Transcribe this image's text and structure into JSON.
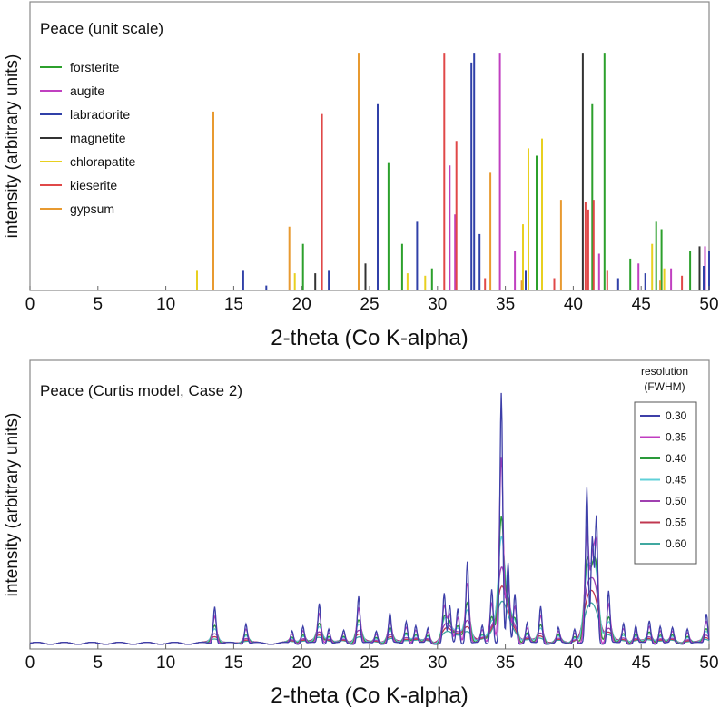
{
  "chart_data": [
    {
      "type": "bar",
      "title": "Peace (unit scale)",
      "xlabel": "2-theta (Co K-alpha)",
      "ylabel": "intensity (arbitrary units)",
      "xlim": [
        0,
        50
      ],
      "ylim": [
        0,
        1
      ],
      "xticks": [
        0,
        5,
        10,
        15,
        20,
        25,
        30,
        35,
        40,
        45,
        50
      ],
      "legend_position": "top-left",
      "series": [
        {
          "name": "forsterite",
          "color": "#2ca02c",
          "peaks": [
            [
              20.1,
              0.19
            ],
            [
              26.4,
              0.52
            ],
            [
              27.4,
              0.19
            ],
            [
              29.6,
              0.09
            ],
            [
              37.3,
              0.55
            ],
            [
              41.4,
              0.76
            ],
            [
              42.3,
              0.97
            ],
            [
              44.2,
              0.13
            ],
            [
              46.1,
              0.28
            ],
            [
              46.5,
              0.25
            ],
            [
              48.6,
              0.16
            ]
          ]
        },
        {
          "name": "augite",
          "color": "#c040c0",
          "peaks": [
            [
              30.9,
              0.51
            ],
            [
              31.3,
              0.31
            ],
            [
              34.6,
              0.97
            ],
            [
              35.7,
              0.16
            ],
            [
              41.9,
              0.15
            ],
            [
              44.8,
              0.11
            ],
            [
              47.2,
              0.09
            ],
            [
              49.7,
              0.18
            ]
          ]
        },
        {
          "name": "labradorite",
          "color": "#3040a8",
          "peaks": [
            [
              15.7,
              0.08
            ],
            [
              17.4,
              0.02
            ],
            [
              22.0,
              0.08
            ],
            [
              25.6,
              0.76
            ],
            [
              28.5,
              0.28
            ],
            [
              32.5,
              0.93
            ],
            [
              32.7,
              0.97
            ],
            [
              33.1,
              0.23
            ],
            [
              36.5,
              0.08
            ],
            [
              43.3,
              0.05
            ],
            [
              45.3,
              0.07
            ],
            [
              49.6,
              0.1
            ],
            [
              50.0,
              0.16
            ]
          ]
        },
        {
          "name": "magnetite",
          "color": "#333333",
          "peaks": [
            [
              21.0,
              0.07
            ],
            [
              24.7,
              0.11
            ],
            [
              40.7,
              0.97
            ],
            [
              49.3,
              0.18
            ]
          ]
        },
        {
          "name": "chlorapatite",
          "color": "#e8d020",
          "peaks": [
            [
              12.3,
              0.08
            ],
            [
              19.5,
              0.07
            ],
            [
              27.8,
              0.07
            ],
            [
              29.1,
              0.06
            ],
            [
              36.3,
              0.27
            ],
            [
              36.7,
              0.58
            ],
            [
              37.7,
              0.62
            ],
            [
              45.8,
              0.19
            ],
            [
              46.7,
              0.09
            ]
          ]
        },
        {
          "name": "kieserite",
          "color": "#e04848",
          "peaks": [
            [
              21.5,
              0.72
            ],
            [
              30.5,
              0.97
            ],
            [
              31.4,
              0.61
            ],
            [
              33.5,
              0.05
            ],
            [
              38.6,
              0.05
            ],
            [
              40.9,
              0.36
            ],
            [
              41.1,
              0.33
            ],
            [
              41.5,
              0.37
            ],
            [
              42.5,
              0.08
            ],
            [
              48.0,
              0.06
            ]
          ]
        },
        {
          "name": "gypsum",
          "color": "#e89a30",
          "peaks": [
            [
              13.5,
              0.73
            ],
            [
              19.1,
              0.26
            ],
            [
              24.2,
              0.97
            ],
            [
              33.9,
              0.48
            ],
            [
              36.2,
              0.04
            ],
            [
              39.1,
              0.37
            ],
            [
              46.4,
              0.04
            ]
          ]
        }
      ]
    },
    {
      "type": "line",
      "title": "Peace (Curtis model, Case 2)",
      "xlabel": "2-theta (Co K-alpha)",
      "ylabel": "intensity (arbitrary units)",
      "xlim": [
        0,
        50
      ],
      "ylim": [
        0,
        1
      ],
      "xticks": [
        0,
        5,
        10,
        15,
        20,
        25,
        30,
        35,
        40,
        45,
        50
      ],
      "legend_title_line1": "resolution",
      "legend_title_line2": "(FWHM)",
      "legend_position": "top-right",
      "series": [
        {
          "name": "0.30",
          "color": "#3d3fa8",
          "peak_scale": 1.0
        },
        {
          "name": "0.35",
          "color": "#c03cc0",
          "peak_scale": 0.74
        },
        {
          "name": "0.40",
          "color": "#2a9a3a",
          "peak_scale": 0.5
        },
        {
          "name": "0.45",
          "color": "#60d0d8",
          "peak_scale": 0.41
        },
        {
          "name": "0.50",
          "color": "#a040b0",
          "peak_scale": 0.28
        },
        {
          "name": "0.55",
          "color": "#c03850",
          "peak_scale": 0.2
        },
        {
          "name": "0.60",
          "color": "#40a8a0",
          "peak_scale": 0.14
        }
      ],
      "peaks_0.30": [
        [
          13.6,
          0.15
        ],
        [
          15.9,
          0.08
        ],
        [
          19.3,
          0.05
        ],
        [
          20.1,
          0.07
        ],
        [
          21.3,
          0.16
        ],
        [
          22.0,
          0.06
        ],
        [
          23.1,
          0.05
        ],
        [
          24.2,
          0.19
        ],
        [
          25.5,
          0.05
        ],
        [
          26.5,
          0.12
        ],
        [
          27.7,
          0.09
        ],
        [
          28.4,
          0.07
        ],
        [
          29.3,
          0.06
        ],
        [
          30.5,
          0.2
        ],
        [
          30.9,
          0.15
        ],
        [
          31.5,
          0.14
        ],
        [
          32.2,
          0.33
        ],
        [
          33.3,
          0.07
        ],
        [
          34.0,
          0.22
        ],
        [
          34.7,
          1.0
        ],
        [
          35.2,
          0.32
        ],
        [
          35.7,
          0.2
        ],
        [
          36.6,
          0.08
        ],
        [
          37.6,
          0.15
        ],
        [
          38.9,
          0.06
        ],
        [
          40.1,
          0.06
        ],
        [
          41.0,
          0.62
        ],
        [
          41.4,
          0.42
        ],
        [
          41.7,
          0.51
        ],
        [
          42.6,
          0.21
        ],
        [
          43.7,
          0.08
        ],
        [
          44.6,
          0.07
        ],
        [
          45.6,
          0.09
        ],
        [
          46.4,
          0.07
        ],
        [
          47.3,
          0.06
        ],
        [
          48.4,
          0.06
        ],
        [
          49.8,
          0.12
        ]
      ]
    }
  ]
}
